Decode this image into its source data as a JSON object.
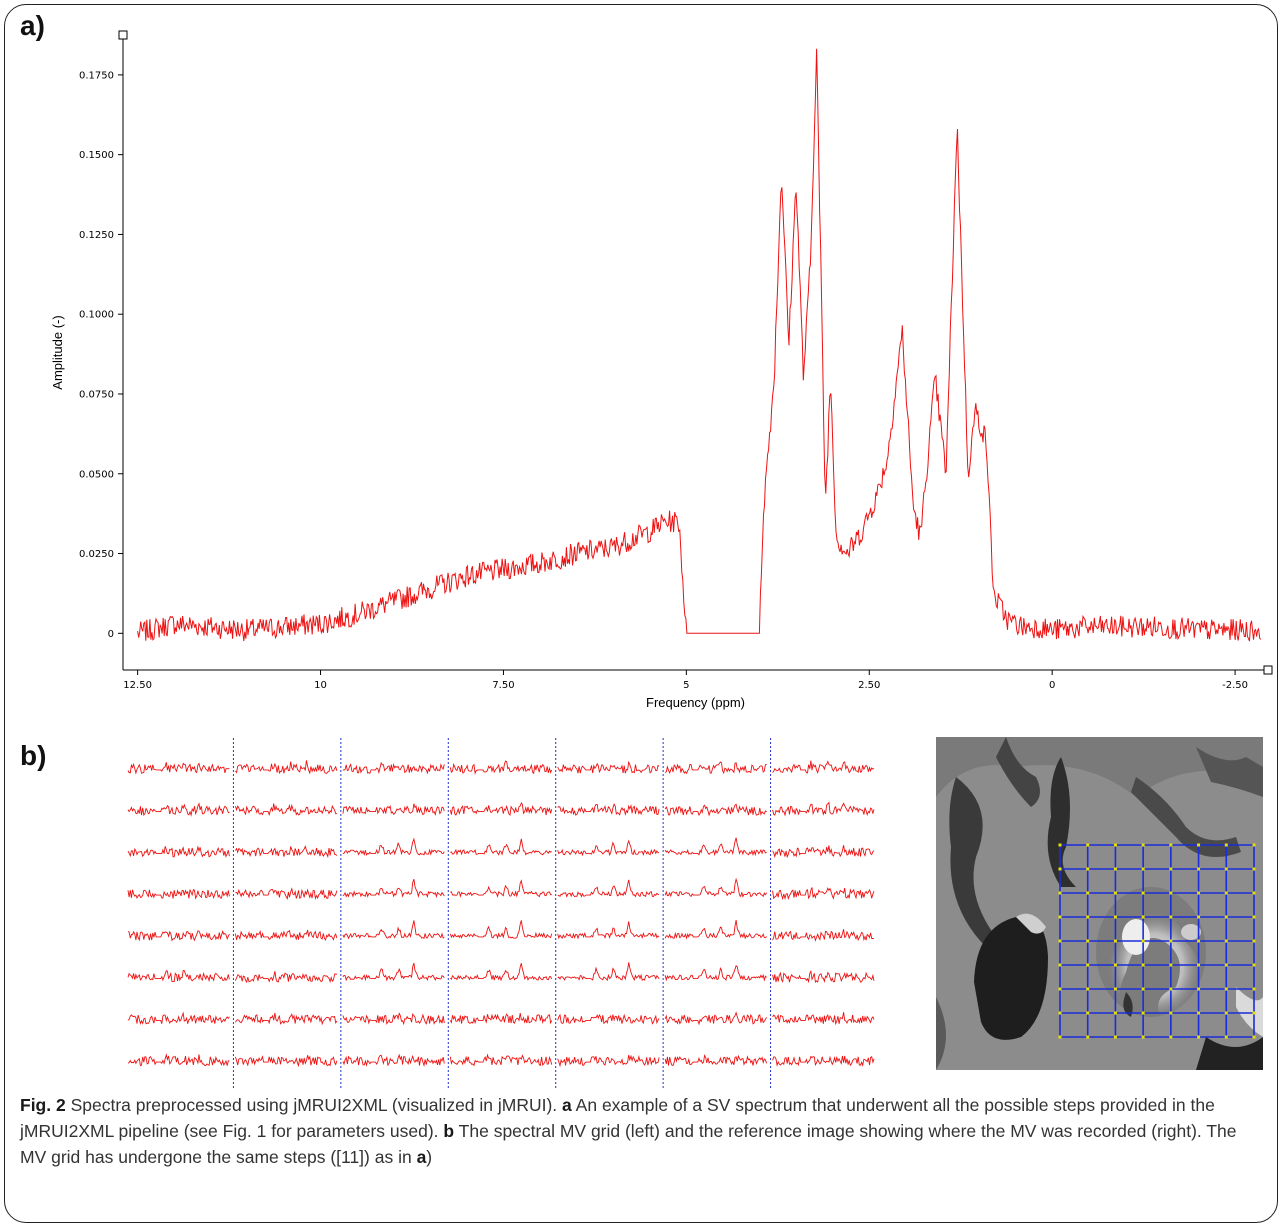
{
  "panels": {
    "a_label": "a)",
    "b_label": "b)"
  },
  "chart_data": {
    "type": "line",
    "title": "",
    "xlabel": "Frequency (ppm)",
    "ylabel": "Amplitude (-)",
    "x_reversed": true,
    "xlim": [
      12.7,
      -2.95
    ],
    "ylim": [
      -0.0115,
      0.1875
    ],
    "x_ticks": [
      12.5,
      10,
      7.5,
      5,
      2.5,
      0,
      -2.5
    ],
    "x_tick_labels": [
      "12.50",
      "10",
      "7.50",
      "5",
      "2.50",
      "0",
      "-2.50"
    ],
    "y_ticks": [
      0,
      0.025,
      0.05,
      0.075,
      0.1,
      0.125,
      0.15,
      0.175
    ],
    "y_tick_labels": [
      "0",
      "0.0250",
      "0.0500",
      "0.0750",
      "0.1000",
      "0.1250",
      "0.1500",
      "0.1750"
    ],
    "grid": false,
    "line_color": "#ee1111",
    "series": [
      {
        "x": [
          12.5,
          12.0,
          11.5,
          11.0,
          10.5,
          10.0,
          9.5,
          9.0,
          8.5,
          8.0,
          7.5,
          7.0,
          6.5,
          6.0,
          5.5,
          5.3,
          5.1,
          5.0,
          4.0,
          3.95,
          3.8,
          3.7,
          3.6,
          3.5,
          3.4,
          3.3,
          3.22,
          3.1,
          3.03,
          2.95,
          2.8,
          2.6,
          2.4,
          2.25,
          2.05,
          1.9,
          1.8,
          1.6,
          1.45,
          1.3,
          1.15,
          1.05,
          0.9,
          0.8,
          0.6,
          0.4,
          0.2,
          0.0,
          -0.5,
          -1.0,
          -1.5,
          -2.0,
          -2.5,
          -2.85
        ],
        "y": [
          0.0,
          0.003,
          0.002,
          0.001,
          0.002,
          0.003,
          0.006,
          0.01,
          0.014,
          0.018,
          0.02,
          0.022,
          0.025,
          0.027,
          0.032,
          0.035,
          0.035,
          0.0,
          0.0,
          0.038,
          0.08,
          0.145,
          0.09,
          0.142,
          0.08,
          0.118,
          0.184,
          0.04,
          0.08,
          0.03,
          0.025,
          0.032,
          0.043,
          0.055,
          0.095,
          0.04,
          0.03,
          0.08,
          0.05,
          0.16,
          0.05,
          0.07,
          0.06,
          0.012,
          0.004,
          0.002,
          0.002,
          0.001,
          0.002,
          0.002,
          0.002,
          0.001,
          0.001,
          0.001
        ]
      }
    ],
    "noise_amplitude": 0.0035
  },
  "mv_grid": {
    "rows": 8,
    "cols": 7,
    "line_color": "#ee1111",
    "divider_color": "#2233cc"
  },
  "reference_image": {
    "grid_rows": 8,
    "grid_cols": 7,
    "grid_color": "#1a2dd8",
    "node_color": "#e8e000"
  },
  "caption": {
    "fig_label": "Fig. 2",
    "t1": " Spectra preprocessed using jMRUI2XML (visualized in jMRUI). ",
    "a": "a",
    "t2": " An example of a SV spectrum that underwent all the possible steps provided in the jMRUI2XML pipeline (see Fig. 1 for parameters used). ",
    "b": "b",
    "t3": " The spectral MV grid (left) and the reference image showing where the MV was recorded (right). The MV grid has undergone the same steps ([11]) as in ",
    "a2": "a",
    "t4": ")"
  }
}
